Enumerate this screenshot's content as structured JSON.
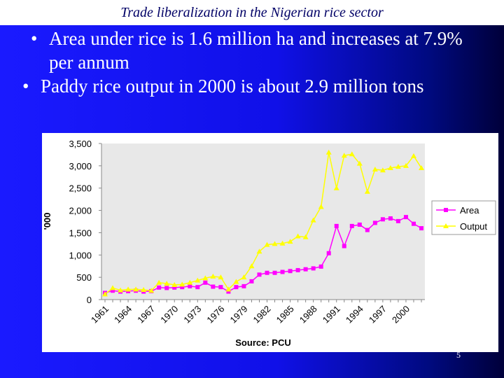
{
  "header": {
    "title": "Trade liberalization in the Nigerian rice sector"
  },
  "bullets": [
    "Area under rice is 1.6 million ha and increases at 7.9% per annum",
    "Paddy rice output in 2000 is about 2.9 million tons"
  ],
  "chart_data": {
    "type": "line",
    "categories": [
      "1961",
      null,
      null,
      "1964",
      null,
      null,
      "1967",
      null,
      null,
      "1970",
      null,
      null,
      "1973",
      null,
      null,
      "1976",
      null,
      null,
      "1979",
      null,
      null,
      "1982",
      null,
      null,
      "1985",
      null,
      null,
      "1988",
      null,
      null,
      "1991",
      null,
      null,
      "1994",
      null,
      null,
      "1997",
      null,
      null,
      "2000",
      null,
      null
    ],
    "series": [
      {
        "name": "Area",
        "color": "#ff00ff",
        "marker": "square",
        "values": [
          150,
          200,
          180,
          190,
          200,
          180,
          190,
          270,
          260,
          270,
          280,
          300,
          280,
          380,
          290,
          280,
          180,
          280,
          300,
          410,
          560,
          600,
          600,
          620,
          640,
          660,
          680,
          700,
          740,
          1040,
          1650,
          1200,
          1650,
          1680,
          1560,
          1720,
          1800,
          1820,
          1760,
          1850,
          1700,
          1600
        ]
      },
      {
        "name": "Output",
        "color": "#ffff00",
        "marker": "triangle",
        "values": [
          120,
          260,
          210,
          230,
          230,
          220,
          200,
          380,
          360,
          330,
          340,
          380,
          430,
          480,
          520,
          500,
          230,
          400,
          500,
          750,
          1080,
          1230,
          1250,
          1260,
          1300,
          1420,
          1400,
          1780,
          2080,
          3300,
          2500,
          3230,
          3260,
          3050,
          2420,
          2920,
          2900,
          2950,
          2980,
          3000,
          3220,
          2950
        ]
      }
    ],
    "ylim": [
      0,
      3500
    ],
    "yticks": [
      0,
      500,
      {
        "value": 1000,
        "label": "1,000"
      },
      {
        "value": 1500,
        "label": "1,500"
      },
      {
        "value": 2000,
        "label": "2,000"
      },
      {
        "value": 2500,
        "label": "2,500"
      },
      {
        "value": 3000,
        "label": "3,000"
      },
      {
        "value": 3500,
        "label": "3,500"
      }
    ],
    "y_label": "'000",
    "x_label": "Source: PCU",
    "legend": "right",
    "grid": false
  },
  "page_number": "5"
}
